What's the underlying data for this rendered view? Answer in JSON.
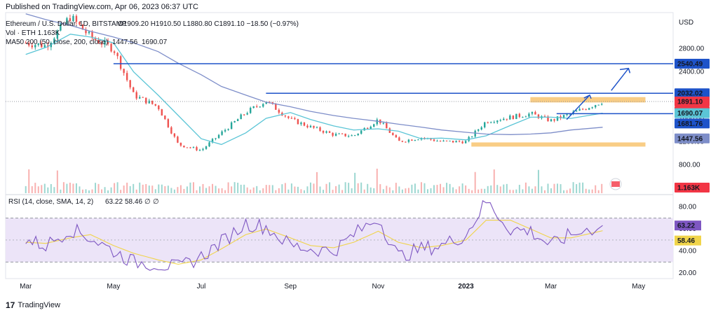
{
  "header": {
    "published": "Published on TradingView.com, Apr 06, 2023 06:37 UTC"
  },
  "footer": {
    "brand": "TradingView",
    "logo_glyph": "17"
  },
  "legend": {
    "title": "Ethereum / U.S. Dollar, 1D, BITSTAMP",
    "ohlc": "O1909.20  H1910.50  L1880.80  C1891.10  −18.50 (−0.97%)",
    "volume": "Vol · ETH  1.163K",
    "ma": "MA50 200 (50, close, 200, close)",
    "ma_values": [
      "1447.56",
      "1690.07"
    ],
    "rsi": "RSI (14, close, SMA, 14, 2)",
    "rsi_values": [
      "63.22",
      "58.46",
      "∅",
      "∅"
    ]
  },
  "colors": {
    "up": "#26a69a",
    "down": "#ef5350",
    "ma_slow": "#7e8ec9",
    "ma_fast": "#5bc5d6",
    "rsi_line": "#7e57c2",
    "rsi_sma": "#f0d44a",
    "rsi_band": "#ece4f8",
    "hline": "#2962ff",
    "zone": "#f5a623",
    "current": "#f23645"
  },
  "chart_data": [
    {
      "type": "line",
      "subtype": "candlestick",
      "title": "Ethereum / U.S. Dollar, 1D, BITSTAMP",
      "currency": "USD",
      "x_ticks": [
        "Mar",
        "May",
        "Jul",
        "Sep",
        "Nov",
        "2023",
        "Mar",
        "May"
      ],
      "y_ticks": [
        "2800.00",
        "2400.00",
        "1600.00",
        "1200.00",
        "800.00",
        "400.00"
      ],
      "ylim": [
        0,
        3500
      ],
      "series": [
        {
          "name": "Price",
          "x": [
            "2022-03-01",
            "2022-03-15",
            "2022-04-01",
            "2022-04-15",
            "2022-05-01",
            "2022-05-15",
            "2022-06-01",
            "2022-06-15",
            "2022-07-01",
            "2022-07-15",
            "2022-08-01",
            "2022-08-15",
            "2022-09-01",
            "2022-09-15",
            "2022-10-01",
            "2022-10-15",
            "2022-11-01",
            "2022-11-15",
            "2022-12-01",
            "2022-12-15",
            "2023-01-01",
            "2023-01-15",
            "2023-02-01",
            "2023-02-15",
            "2023-03-01",
            "2023-03-15",
            "2023-04-06"
          ],
          "values": [
            2900,
            2850,
            3350,
            3000,
            2800,
            2000,
            1800,
            1150,
            1050,
            1350,
            1700,
            1900,
            1580,
            1450,
            1320,
            1300,
            1580,
            1200,
            1270,
            1200,
            1200,
            1550,
            1620,
            1680,
            1560,
            1680,
            1891.1
          ]
        },
        {
          "name": "MA 50",
          "values": [
            2700,
            2820,
            3050,
            3000,
            2900,
            2400,
            2000,
            1650,
            1250,
            1150,
            1350,
            1600,
            1700,
            1580,
            1470,
            1400,
            1420,
            1380,
            1250,
            1260,
            1230,
            1300,
            1480,
            1620,
            1620,
            1600,
            1690.07
          ]
        },
        {
          "name": "MA 200",
          "values": [
            3400,
            3300,
            3200,
            3100,
            3000,
            2900,
            2750,
            2550,
            2350,
            2150,
            2000,
            1880,
            1800,
            1720,
            1650,
            1600,
            1550,
            1500,
            1450,
            1400,
            1360,
            1330,
            1320,
            1330,
            1350,
            1400,
            1447.56
          ]
        }
      ],
      "levels": [
        {
          "value": 2540.49,
          "label": "2540.49"
        },
        {
          "value": 2032.02,
          "label": "2032.02"
        },
        {
          "value": 1681.76,
          "label": "1681.76"
        }
      ],
      "zones": [
        [
          1880,
          1960
        ],
        [
          1120,
          1180
        ]
      ],
      "current_price": {
        "value": "1891.10",
        "countdown": "17:22:24"
      },
      "volume_last": "1.163K"
    },
    {
      "type": "line",
      "title": "RSI (14, close, SMA, 14, 2)",
      "y_ticks": [
        "80.00",
        "60.00",
        "40.00",
        "20.00"
      ],
      "ylim": [
        15,
        90
      ],
      "band": [
        30,
        70
      ],
      "series": [
        {
          "name": "RSI",
          "values": [
            50,
            45,
            60,
            52,
            40,
            30,
            28,
            25,
            35,
            48,
            65,
            62,
            45,
            42,
            40,
            55,
            70,
            35,
            42,
            45,
            55,
            85,
            60,
            58,
            45,
            55,
            63.22
          ]
        },
        {
          "name": "SMA",
          "values": [
            48,
            47,
            52,
            55,
            45,
            38,
            32,
            28,
            32,
            42,
            55,
            60,
            52,
            45,
            43,
            48,
            58,
            48,
            43,
            45,
            50,
            68,
            68,
            60,
            52,
            52,
            58.46
          ]
        }
      ],
      "value_labels": [
        "63.22",
        "58.46"
      ]
    }
  ]
}
